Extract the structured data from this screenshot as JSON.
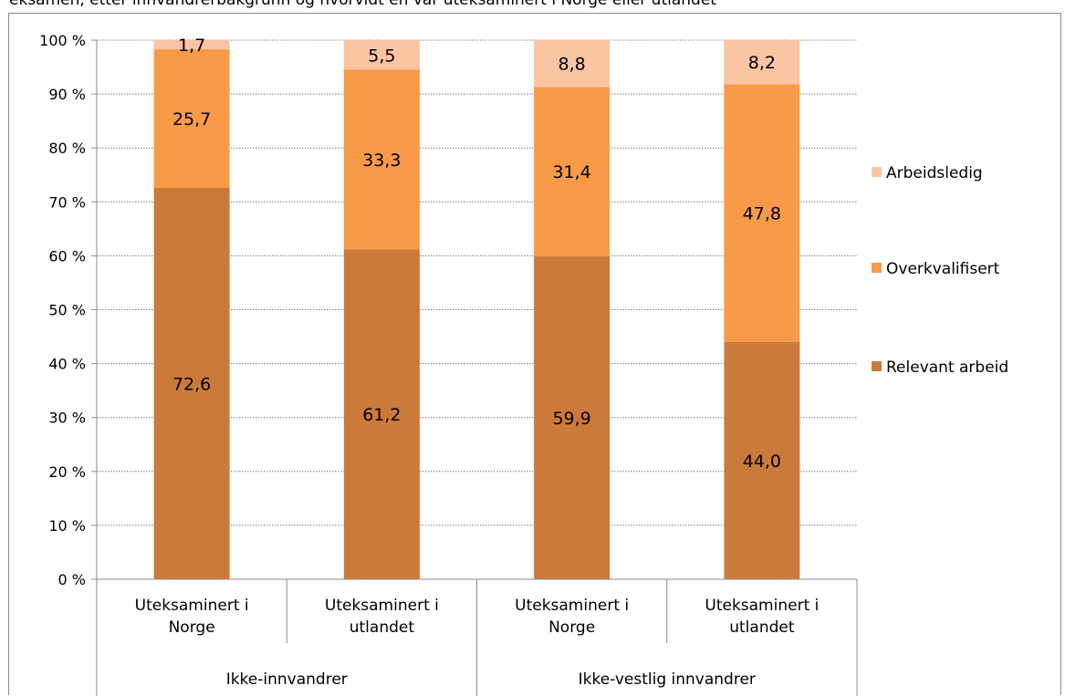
{
  "header": {
    "title_fragment": "eksamen, etter innvandrerbakgrunn og hvorvidt en var uteksaminert i Norge eller utlandet"
  },
  "chart_data": {
    "type": "bar",
    "stacked": true,
    "categories": [
      [
        "Uteksaminert i",
        "Norge"
      ],
      [
        "Uteksaminert i",
        "utlandet"
      ],
      [
        "Uteksaminert i",
        "Norge"
      ],
      [
        "Uteksaminert i",
        "utlandet"
      ]
    ],
    "groups": [
      {
        "label": "Ikke-innvandrer",
        "span": [
          0,
          1
        ]
      },
      {
        "label": "Ikke-vestlig innvandrer",
        "span": [
          2,
          3
        ]
      }
    ],
    "series": [
      {
        "name": "Relevant arbeid",
        "color": "#cc7a3a",
        "values": [
          72.6,
          61.2,
          59.9,
          44.0
        ],
        "labels": [
          "72,6",
          "61,2",
          "59,9",
          "44,0"
        ]
      },
      {
        "name": "Overkvalifisert",
        "color": "#f79b49",
        "values": [
          25.7,
          33.3,
          31.4,
          47.8
        ],
        "labels": [
          "25,7",
          "33,3",
          "31,4",
          "47,8"
        ]
      },
      {
        "name": "Arbeidsledig",
        "color": "#fbc4a2",
        "values": [
          1.7,
          5.5,
          8.8,
          8.2
        ],
        "labels": [
          "1,7",
          "5,5",
          "8,8",
          "8,2"
        ]
      }
    ],
    "ylim": [
      0,
      100
    ],
    "yticks": [
      0,
      10,
      20,
      30,
      40,
      50,
      60,
      70,
      80,
      90,
      100
    ],
    "ytick_labels": [
      "0 %",
      "10 %",
      "20 %",
      "30 %",
      "40 %",
      "50 %",
      "60 %",
      "70 %",
      "80 %",
      "90 %",
      "100 %"
    ],
    "grid": true,
    "legend_position": "right"
  }
}
